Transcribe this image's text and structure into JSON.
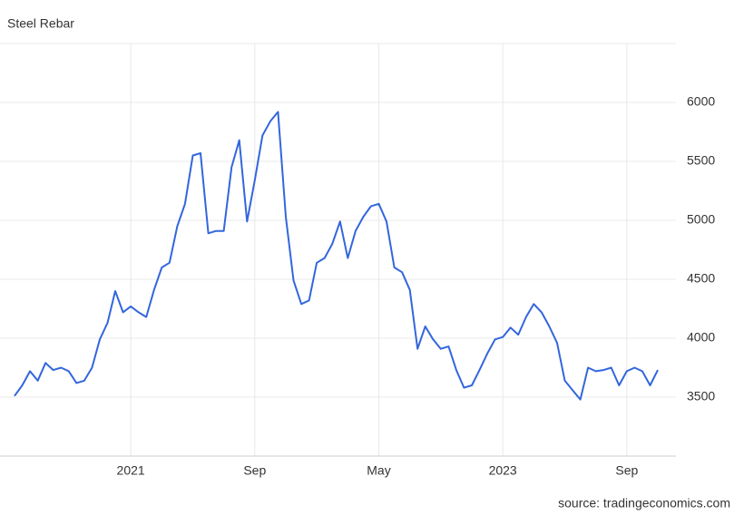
{
  "chart_data": {
    "type": "line",
    "title": "Steel Rebar",
    "source": "source: tradingeconomics.com",
    "categories": [
      null,
      null,
      null,
      null,
      null,
      null,
      null,
      null,
      null,
      null,
      null,
      null,
      null,
      null,
      null,
      "2021",
      null,
      null,
      null,
      null,
      null,
      null,
      null,
      null,
      null,
      null,
      null,
      null,
      null,
      null,
      null,
      "Sep",
      null,
      null,
      null,
      null,
      null,
      null,
      null,
      null,
      null,
      null,
      null,
      null,
      null,
      null,
      null,
      "May",
      null,
      null,
      null,
      null,
      null,
      null,
      null,
      null,
      null,
      null,
      null,
      null,
      null,
      null,
      null,
      "2023",
      null,
      null,
      null,
      null,
      null,
      null,
      null,
      null,
      null,
      null,
      null,
      null,
      null,
      null,
      null,
      "Sep",
      null,
      null,
      null,
      null
    ],
    "values": [
      3510,
      3600,
      3720,
      3640,
      3790,
      3730,
      3750,
      3720,
      3620,
      3640,
      3750,
      3990,
      4130,
      4400,
      4220,
      4270,
      4220,
      4180,
      4410,
      4600,
      4640,
      4950,
      5140,
      5550,
      5570,
      4890,
      4910,
      4910,
      5450,
      5680,
      4990,
      5340,
      5720,
      5840,
      5920,
      5030,
      4490,
      4290,
      4320,
      4640,
      4680,
      4800,
      4990,
      4680,
      4910,
      5030,
      5120,
      5140,
      4990,
      4600,
      4560,
      4410,
      3910,
      4100,
      3990,
      3910,
      3930,
      3730,
      3580,
      3600,
      3730,
      3870,
      3990,
      4010,
      4090,
      4030,
      4180,
      4290,
      4220,
      4100,
      3960,
      3640,
      3560,
      3480,
      3750,
      3720,
      3730,
      3750,
      3600,
      3720,
      3750,
      3720,
      3600,
      3730
    ],
    "color": "#3366dd",
    "ylim": [
      3000,
      6500
    ],
    "yticks": [
      3500,
      4000,
      4500,
      5000,
      5500,
      6000
    ],
    "grid": true
  }
}
